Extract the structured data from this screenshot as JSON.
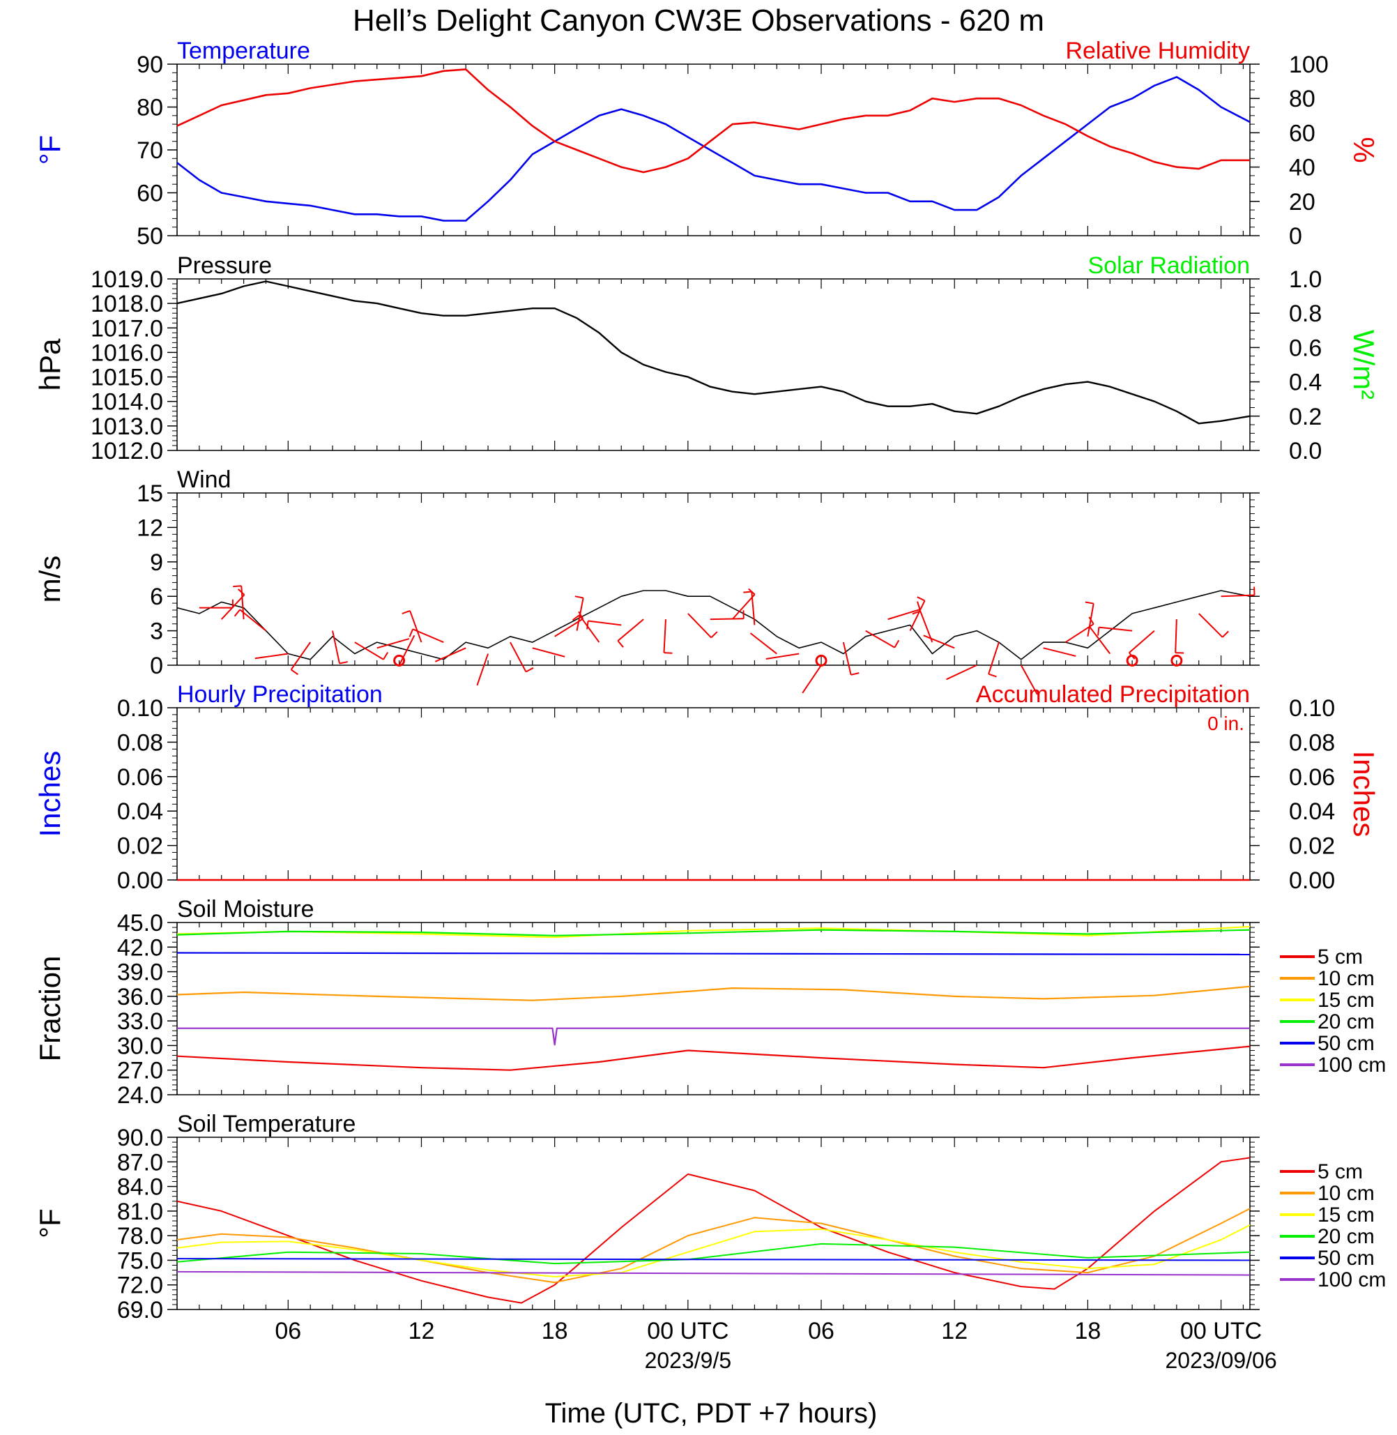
{
  "title": "Hell’s Delight Canyon CW3E Observations - 620 m",
  "xlabel": "Time (UTC, PDT +7 hours)",
  "x_ticks": {
    "hours": [
      6,
      12,
      18,
      24,
      30,
      36,
      42,
      48
    ],
    "labels": [
      "06",
      "12",
      "18",
      "00 UTC",
      "06",
      "12",
      "18",
      "00 UTC"
    ],
    "minor_step": 1,
    "range": [
      1,
      49.3
    ]
  },
  "dates": [
    {
      "hour": 24,
      "label": "2023/9/5"
    },
    {
      "hour": 48,
      "label": "2023/09/06"
    }
  ],
  "colors": {
    "temp": "#0000ee",
    "rh": "#ee0000",
    "solar": "#00ee00",
    "precip_acc": "#ee0000",
    "black": "#000000"
  },
  "panels": {
    "temp_rh": {
      "left_title": "Temperature",
      "right_title": "Relative Humidity",
      "left_ylabel": "°F",
      "right_ylabel": "%",
      "left_ylim": [
        50,
        90
      ],
      "right_ylim": [
        0,
        100
      ],
      "left_ticks": [
        "50",
        "60",
        "70",
        "80",
        "90"
      ],
      "right_ticks": [
        "0",
        "20",
        "40",
        "60",
        "80",
        "100"
      ]
    },
    "pressure": {
      "left_title": "Pressure",
      "right_title": "Solar Radiation",
      "left_ylabel": "hPa",
      "right_ylabel": "W/m²",
      "left_ylim": [
        1012,
        1019
      ],
      "right_ylim": [
        0,
        1
      ],
      "left_ticks": [
        "1012.0",
        "1013.0",
        "1014.0",
        "1015.0",
        "1016.0",
        "1017.0",
        "1018.0",
        "1019.0"
      ],
      "right_ticks": [
        "0.0",
        "0.2",
        "0.4",
        "0.6",
        "0.8",
        "1.0"
      ]
    },
    "wind": {
      "left_title": "Wind",
      "left_ylabel": "m/s",
      "left_ylim": [
        0,
        15
      ],
      "left_ticks": [
        "0",
        "3",
        "6",
        "9",
        "12",
        "15"
      ]
    },
    "precip": {
      "left_title": "Hourly Precipitation",
      "right_title": "Accumulated Precipitation",
      "total_label": "0 in.",
      "left_ylabel": "Inches",
      "right_ylabel": "Inches",
      "left_ylim": [
        0,
        0.1
      ],
      "right_ylim": [
        0,
        0.1
      ],
      "left_ticks": [
        "0.00",
        "0.02",
        "0.04",
        "0.06",
        "0.08",
        "0.10"
      ],
      "right_ticks": [
        "0.00",
        "0.02",
        "0.04",
        "0.06",
        "0.08",
        "0.10"
      ]
    },
    "soil_moisture": {
      "left_title": "Soil Moisture",
      "left_ylabel": "Fraction",
      "left_ylim": [
        24,
        45
      ],
      "left_ticks": [
        "24.0",
        "27.0",
        "30.0",
        "33.0",
        "36.0",
        "39.0",
        "42.0",
        "45.0"
      ]
    },
    "soil_temperature": {
      "left_title": "Soil Temperature",
      "left_ylabel": "°F",
      "left_ylim": [
        69,
        90
      ],
      "left_ticks": [
        "69.0",
        "72.0",
        "75.0",
        "78.0",
        "81.0",
        "84.0",
        "87.0",
        "90.0"
      ]
    }
  },
  "legend_depths": [
    {
      "label": "5 cm",
      "color": "#ee0000"
    },
    {
      "label": "10 cm",
      "color": "#ff9900"
    },
    {
      "label": "15 cm",
      "color": "#ffff00"
    },
    {
      "label": "20 cm",
      "color": "#00ee00"
    },
    {
      "label": "50 cm",
      "color": "#0000ee"
    },
    {
      "label": "100 cm",
      "color": "#9933cc"
    }
  ],
  "chart_data": {
    "type": "line",
    "x_unit": "hours since 2023-09-04 00 UTC",
    "series": [
      {
        "panel": "temp_rh",
        "axis": "left",
        "name": "Temperature",
        "color": "#0000ee",
        "x": [
          1,
          2,
          3,
          4,
          5,
          6,
          7,
          8,
          9,
          10,
          11,
          12,
          13,
          14,
          15,
          16,
          17,
          18,
          19,
          20,
          21,
          22,
          23,
          24,
          25,
          26,
          27,
          28,
          29,
          30,
          31,
          32,
          33,
          34,
          35,
          36,
          37,
          38,
          39,
          40,
          41,
          42,
          43,
          44,
          45,
          46,
          47,
          48,
          49.3
        ],
        "y": [
          67,
          63,
          60,
          59,
          58,
          57.5,
          57,
          56,
          55,
          55,
          54.5,
          54.5,
          53.5,
          53.5,
          58,
          63,
          69,
          72,
          75,
          78,
          79.5,
          78,
          76,
          73,
          70,
          67,
          64,
          63,
          62,
          62,
          61,
          60,
          60,
          58,
          58,
          56,
          56,
          59,
          64,
          68,
          72,
          76,
          80,
          82,
          85,
          87,
          84,
          80,
          76.5
        ]
      },
      {
        "panel": "temp_rh",
        "axis": "right",
        "name": "Relative Humidity",
        "color": "#ee0000",
        "x": [
          1,
          2,
          3,
          4,
          5,
          6,
          7,
          8,
          9,
          10,
          11,
          12,
          13,
          14,
          15,
          16,
          17,
          18,
          19,
          20,
          21,
          22,
          23,
          24,
          25,
          26,
          27,
          28,
          29,
          30,
          31,
          32,
          33,
          34,
          35,
          36,
          37,
          38,
          39,
          40,
          41,
          42,
          43,
          44,
          45,
          46,
          47,
          48,
          49.3
        ],
        "y": [
          64,
          70,
          76,
          79,
          82,
          83,
          86,
          88,
          90,
          91,
          92,
          93,
          96,
          97,
          85,
          75,
          64,
          55,
          50,
          45,
          40,
          37,
          40,
          45,
          55,
          65,
          66,
          64,
          62,
          65,
          68,
          70,
          70,
          73,
          80,
          78,
          80,
          80,
          76,
          70,
          65,
          58,
          52,
          48,
          43,
          40,
          39,
          44,
          44
        ]
      },
      {
        "panel": "pressure",
        "axis": "left",
        "name": "Pressure",
        "color": "#000000",
        "x": [
          1,
          2,
          3,
          4,
          5,
          6,
          7,
          8,
          9,
          10,
          11,
          12,
          13,
          14,
          15,
          16,
          17,
          18,
          19,
          20,
          21,
          22,
          23,
          24,
          25,
          26,
          27,
          28,
          29,
          30,
          31,
          32,
          33,
          34,
          35,
          36,
          37,
          38,
          39,
          40,
          41,
          42,
          43,
          44,
          45,
          46,
          47,
          48,
          49.3
        ],
        "y": [
          1018,
          1018.2,
          1018.4,
          1018.7,
          1018.9,
          1018.7,
          1018.5,
          1018.3,
          1018.1,
          1018,
          1017.8,
          1017.6,
          1017.5,
          1017.5,
          1017.6,
          1017.7,
          1017.8,
          1017.8,
          1017.4,
          1016.8,
          1016,
          1015.5,
          1015.2,
          1015,
          1014.6,
          1014.4,
          1014.3,
          1014.4,
          1014.5,
          1014.6,
          1014.4,
          1014,
          1013.8,
          1013.8,
          1013.9,
          1013.6,
          1013.5,
          1013.8,
          1014.2,
          1014.5,
          1014.7,
          1014.8,
          1014.6,
          1014.3,
          1014,
          1013.6,
          1013.1,
          1013.2,
          1013.4
        ]
      },
      {
        "panel": "wind",
        "axis": "left",
        "name": "Wind",
        "color": "#000000",
        "x": [
          1,
          2,
          3,
          4,
          5,
          6,
          7,
          8,
          9,
          10,
          11,
          12,
          13,
          14,
          15,
          16,
          17,
          18,
          19,
          20,
          21,
          22,
          23,
          24,
          25,
          26,
          27,
          28,
          29,
          30,
          31,
          32,
          33,
          34,
          35,
          36,
          37,
          38,
          39,
          40,
          41,
          42,
          43,
          44,
          45,
          46,
          47,
          48,
          49.3
        ],
        "y": [
          5,
          4.5,
          5.5,
          5,
          3,
          1,
          0.5,
          2.5,
          1,
          2,
          1.5,
          1,
          0.5,
          2,
          1.5,
          2.5,
          2,
          3,
          4,
          5,
          6,
          6.5,
          6.5,
          6,
          6,
          5,
          4,
          2.5,
          1.5,
          2,
          1,
          2.5,
          3,
          3.5,
          1,
          2.5,
          3,
          2,
          0.5,
          2,
          2,
          1.5,
          3,
          4.5,
          5,
          5.5,
          6,
          6.5,
          6
        ]
      },
      {
        "panel": "soil_moisture",
        "axis": "left",
        "name": "5 cm",
        "color": "#ee0000",
        "x": [
          1,
          6,
          12,
          16,
          20,
          24,
          30,
          36,
          40,
          44,
          49.3
        ],
        "y": [
          28.7,
          28,
          27.3,
          27,
          28,
          29.4,
          28.5,
          27.7,
          27.3,
          28.5,
          29.9
        ]
      },
      {
        "panel": "soil_moisture",
        "axis": "left",
        "name": "10 cm",
        "color": "#ff9900",
        "x": [
          1,
          4,
          10,
          17,
          21,
          26,
          31,
          36,
          40,
          45,
          49.3
        ],
        "y": [
          36.2,
          36.5,
          36,
          35.5,
          36,
          37,
          36.8,
          36,
          35.7,
          36.1,
          37.2
        ]
      },
      {
        "panel": "soil_moisture",
        "axis": "left",
        "name": "15 cm",
        "color": "#ffff00",
        "x": [
          1,
          6,
          12,
          18,
          24,
          30,
          36,
          42,
          49.3
        ],
        "y": [
          43.6,
          43.9,
          43.6,
          43.2,
          44,
          44.3,
          43.9,
          43.4,
          44.5
        ]
      },
      {
        "panel": "soil_moisture",
        "axis": "left",
        "name": "20 cm",
        "color": "#00ee00",
        "x": [
          1,
          6,
          12,
          18,
          24,
          30,
          36,
          42,
          49.3
        ],
        "y": [
          43.5,
          43.9,
          43.8,
          43.4,
          43.7,
          44.1,
          43.9,
          43.6,
          44.1
        ]
      },
      {
        "panel": "soil_moisture",
        "axis": "left",
        "name": "50 cm",
        "color": "#0000ee",
        "x": [
          1,
          49.3
        ],
        "y": [
          41.3,
          41.1
        ]
      },
      {
        "panel": "soil_moisture",
        "axis": "left",
        "name": "100 cm",
        "color": "#9933cc",
        "x": [
          1,
          17.9,
          18,
          18.1,
          49.3
        ],
        "y": [
          32.1,
          32.1,
          30.1,
          32.1,
          32.1
        ]
      },
      {
        "panel": "soil_temperature",
        "axis": "left",
        "name": "5 cm",
        "color": "#ee0000",
        "x": [
          1,
          3,
          6,
          9,
          12,
          15,
          16.5,
          18,
          21,
          24,
          27,
          30,
          33,
          36,
          39,
          40.5,
          42,
          45,
          48,
          49.3
        ],
        "y": [
          82.2,
          81,
          78,
          75,
          72.5,
          70.5,
          69.8,
          72,
          79,
          85.5,
          83.5,
          79,
          76,
          73.5,
          71.8,
          71.5,
          74,
          81,
          87,
          87.5
        ]
      },
      {
        "panel": "soil_temperature",
        "axis": "left",
        "name": "10 cm",
        "color": "#ff9900",
        "x": [
          1,
          3,
          6,
          9,
          12,
          15,
          18,
          21,
          24,
          27,
          30,
          33,
          36,
          39,
          42,
          45,
          48,
          49.3
        ],
        "y": [
          77.5,
          78.2,
          77.8,
          76.5,
          75,
          73.5,
          72.3,
          74,
          78,
          80.2,
          79.5,
          77.5,
          75.5,
          74,
          73.5,
          75.5,
          79.5,
          81.3
        ]
      },
      {
        "panel": "soil_temperature",
        "axis": "left",
        "name": "15 cm",
        "color": "#ffff00",
        "x": [
          1,
          3,
          6,
          9,
          12,
          15,
          18,
          21,
          24,
          27,
          30,
          33,
          36,
          39,
          42,
          45,
          48,
          49.3
        ],
        "y": [
          76.5,
          77.2,
          77.3,
          76.3,
          75,
          73.8,
          73,
          73.5,
          76,
          78.5,
          78.8,
          77.5,
          76,
          74.8,
          74,
          74.5,
          77.5,
          79.3
        ]
      },
      {
        "panel": "soil_temperature",
        "axis": "left",
        "name": "20 cm",
        "color": "#00ee00",
        "x": [
          1,
          6,
          12,
          18,
          24,
          30,
          36,
          42,
          49.3
        ],
        "y": [
          74.8,
          76,
          75.8,
          74.6,
          75.1,
          77,
          76.6,
          75.3,
          76
        ]
      },
      {
        "panel": "soil_temperature",
        "axis": "left",
        "name": "50 cm",
        "color": "#0000ee",
        "x": [
          1,
          49.3
        ],
        "y": [
          75.2,
          75
        ]
      },
      {
        "panel": "soil_temperature",
        "axis": "left",
        "name": "100 cm",
        "color": "#9933cc",
        "x": [
          1,
          49.3
        ],
        "y": [
          73.6,
          73.2
        ]
      }
    ],
    "wind_barbs": {
      "color": "#ee0000",
      "x": [
        2,
        3,
        4,
        5,
        6,
        7,
        8,
        9,
        10,
        11,
        12,
        13,
        14,
        15,
        16,
        17,
        18,
        19,
        20,
        21,
        22,
        23,
        24,
        25,
        26,
        27,
        28,
        29,
        30,
        31,
        32,
        33,
        34,
        35,
        36,
        37,
        38,
        39,
        40,
        41,
        42,
        43,
        44,
        45,
        46,
        47,
        48
      ],
      "speed": [
        5,
        4,
        4,
        3,
        1,
        2,
        3,
        2,
        1.5,
        0,
        2,
        2,
        1.5,
        1,
        2,
        1.5,
        2.5,
        3,
        2,
        3.5,
        4,
        4,
        4.5,
        4,
        4,
        3.5,
        1,
        1,
        0,
        2,
        3,
        4,
        3,
        2,
        1.5,
        0,
        2,
        0,
        1.5,
        2,
        2.5,
        1,
        3,
        3,
        4,
        4.5,
        6
      ]
    },
    "calm_markers": {
      "color": "#ee0000",
      "x": [
        11,
        30,
        44,
        46
      ]
    },
    "precip_hourly": {
      "x": [
        1,
        49.3
      ],
      "y": [
        0,
        0
      ]
    },
    "precip_accumulated": {
      "x": [
        1,
        49.3
      ],
      "y": [
        0,
        0
      ]
    }
  }
}
